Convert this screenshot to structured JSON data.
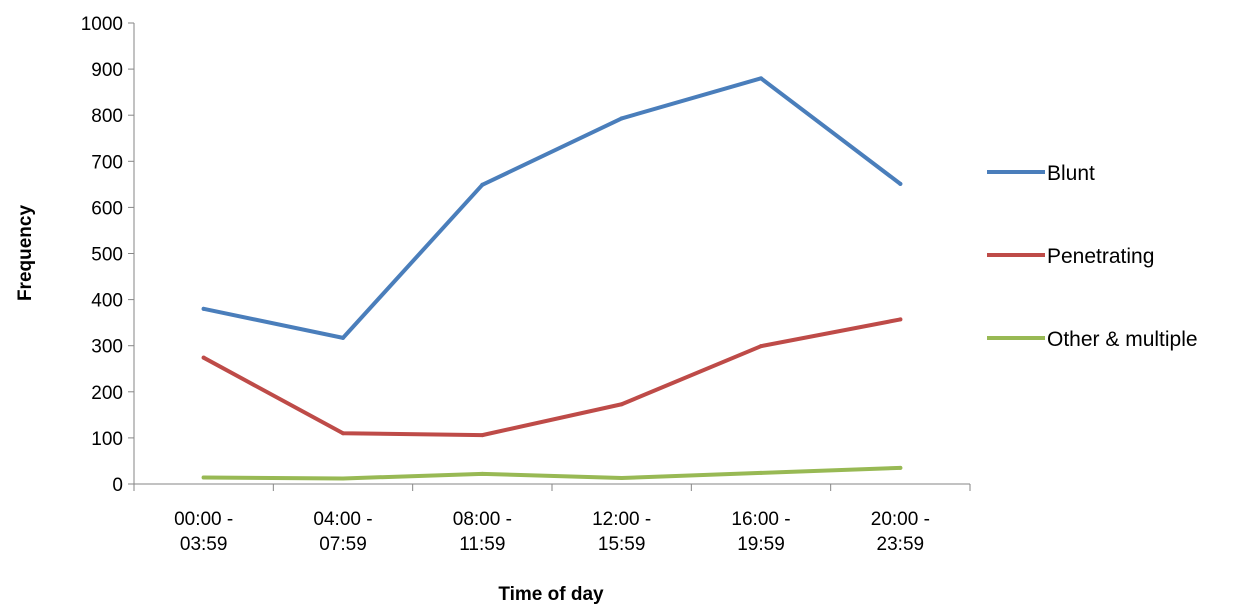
{
  "chart_data": {
    "type": "line",
    "categories": [
      [
        "00:00 -",
        "03:59"
      ],
      [
        "04:00 -",
        "07:59"
      ],
      [
        "08:00 -",
        "11:59"
      ],
      [
        "12:00 -",
        "15:59"
      ],
      [
        "16:00 -",
        "19:59"
      ],
      [
        "20:00 -",
        "23:59"
      ]
    ],
    "series": [
      {
        "name": "Blunt",
        "color": "#4A7EBB",
        "values": [
          380,
          317,
          649,
          793,
          880,
          651
        ]
      },
      {
        "name": "Penetrating",
        "color": "#BE4B48",
        "values": [
          274,
          110,
          106,
          173,
          299,
          357
        ]
      },
      {
        "name": "Other & multiple",
        "color": "#98B954",
        "values": [
          14,
          12,
          22,
          13,
          24,
          35
        ]
      }
    ],
    "xlabel": "Time of day",
    "ylabel": "Frequency",
    "ylim": [
      0,
      1000
    ],
    "yticks": [
      0,
      100,
      200,
      300,
      400,
      500,
      600,
      700,
      800,
      900,
      1000
    ],
    "grid": false,
    "legend": "right"
  }
}
